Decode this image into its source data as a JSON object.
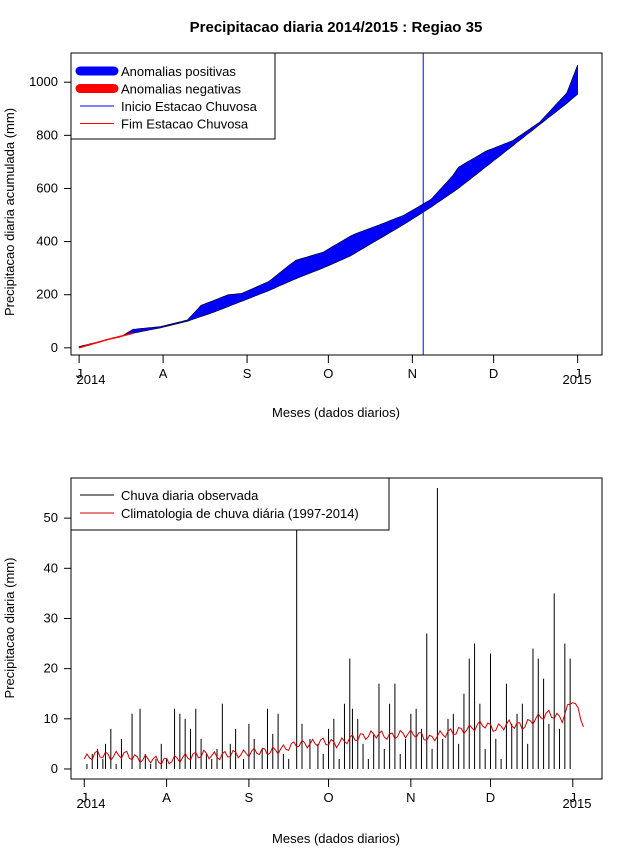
{
  "figure_title": "Precipitacao diaria 2014/2015 : Regiao 35",
  "colors": {
    "positive": "#0000ff",
    "negative": "#ff0000",
    "onset": "#0000ff",
    "end": "#ff0000",
    "bar": "#000000",
    "clim": "#cc0000"
  },
  "chart_data": [
    {
      "id": "accumulated",
      "type": "area",
      "ylabel": "Precipitacao diaria acumulada (mm)",
      "xlabel": "Meses (dados diarios)",
      "x_ticks": [
        "J",
        "A",
        "S",
        "O",
        "N",
        "D",
        "J"
      ],
      "x_tick_days": [
        0,
        31,
        62,
        92,
        123,
        153,
        184
      ],
      "year_labels": {
        "start": "2014",
        "end": "2015"
      },
      "y_ticks": [
        0,
        200,
        400,
        600,
        800,
        1000
      ],
      "xlim": [
        -3,
        193
      ],
      "ylim": [
        -27,
        1110
      ],
      "legend": {
        "position": "top-left",
        "entries": [
          {
            "label": "Anomalias positivas",
            "color": "#0000ff",
            "style": "thick"
          },
          {
            "label": "Anomalias negativas",
            "color": "#ff0000",
            "style": "thick"
          },
          {
            "label": "Inicio Estacao Chuvosa",
            "color": "#0000ff",
            "style": "line"
          },
          {
            "label": "Fim Estacao Chuvosa",
            "color": "#ff0000",
            "style": "line"
          }
        ]
      },
      "onset_day": 127,
      "observed_cumulative": {
        "days": [
          0,
          10,
          15,
          20,
          30,
          40,
          45,
          50,
          55,
          60,
          70,
          78,
          80,
          90,
          100,
          102,
          110,
          120,
          130,
          138,
          140,
          150,
          160,
          170,
          180,
          184
        ],
        "values": [
          5,
          30,
          40,
          70,
          80,
          105,
          160,
          180,
          200,
          205,
          250,
          315,
          330,
          360,
          420,
          430,
          460,
          500,
          560,
          650,
          680,
          740,
          780,
          850,
          960,
          1065
        ]
      },
      "climatology_cumulative": {
        "days": [
          0,
          10,
          20,
          30,
          40,
          50,
          60,
          70,
          80,
          90,
          100,
          110,
          120,
          130,
          140,
          150,
          160,
          170,
          180,
          184
        ],
        "values": [
          0,
          30,
          55,
          75,
          100,
          135,
          175,
          215,
          260,
          300,
          345,
          405,
          465,
          530,
          600,
          680,
          760,
          840,
          920,
          955
        ]
      }
    },
    {
      "id": "daily",
      "type": "bar",
      "ylabel": "Precipitacao diaria (mm)",
      "xlabel": "Meses (dados diarios)",
      "x_ticks": [
        "J",
        "A",
        "S",
        "O",
        "N",
        "D",
        "J"
      ],
      "x_tick_days": [
        0,
        31,
        62,
        92,
        123,
        153,
        184
      ],
      "year_labels": {
        "start": "2014",
        "end": "2015"
      },
      "y_ticks": [
        0,
        10,
        20,
        30,
        40,
        50
      ],
      "xlim": [
        -5,
        195
      ],
      "ylim": [
        -2,
        58
      ],
      "legend": {
        "position": "top-left",
        "entries": [
          {
            "label": "Chuva diaria observada",
            "color": "#000000"
          },
          {
            "label": "Climatologia de chuva diária (1997-2014)",
            "color": "#cc0000"
          }
        ]
      },
      "observed_daily": {
        "days": [
          1,
          3,
          5,
          7,
          8,
          10,
          12,
          14,
          18,
          21,
          23,
          25,
          27,
          29,
          31,
          34,
          36,
          38,
          40,
          42,
          44,
          46,
          48,
          50,
          52,
          55,
          57,
          60,
          62,
          64,
          67,
          69,
          71,
          73,
          75,
          77,
          80,
          82,
          85,
          88,
          90,
          92,
          94,
          96,
          98,
          100,
          101,
          103,
          105,
          107,
          109,
          111,
          113,
          115,
          117,
          119,
          121,
          123,
          125,
          127,
          129,
          131,
          133,
          135,
          137,
          139,
          141,
          143,
          145,
          147,
          149,
          151,
          153,
          155,
          157,
          159,
          161,
          163,
          165,
          167,
          169,
          171,
          173,
          175,
          177,
          179,
          181,
          183
        ],
        "values": [
          1,
          3,
          4,
          2,
          5,
          8,
          1,
          6,
          11,
          12,
          3,
          1,
          2,
          5,
          2,
          12,
          11,
          10,
          8,
          12,
          6,
          3,
          2,
          4,
          13,
          5,
          8,
          2,
          9,
          6,
          4,
          12,
          7,
          11,
          3,
          2,
          48,
          9,
          6,
          5,
          3,
          8,
          10,
          2,
          13,
          22,
          12,
          10,
          5,
          2,
          7,
          17,
          4,
          13,
          17,
          3,
          6,
          11,
          12,
          8,
          27,
          4,
          56,
          6,
          10,
          11,
          5,
          15,
          22,
          25,
          13,
          4,
          23,
          6,
          2,
          17,
          9,
          11,
          13,
          5,
          24,
          22,
          18,
          9,
          35,
          8,
          25,
          22
        ]
      },
      "climatology_daily": {
        "days": [
          0,
          5,
          10,
          15,
          20,
          25,
          30,
          35,
          40,
          45,
          50,
          55,
          60,
          65,
          70,
          75,
          80,
          85,
          90,
          95,
          100,
          105,
          110,
          115,
          120,
          125,
          130,
          135,
          140,
          145,
          150,
          155,
          160,
          165,
          170,
          175,
          180,
          184,
          188
        ],
        "values": [
          2,
          3,
          2.5,
          3,
          2,
          2,
          1.5,
          2,
          2.5,
          3,
          2.5,
          3,
          3,
          3.5,
          3.5,
          4,
          5,
          5,
          5.5,
          5,
          6,
          6.5,
          7,
          6.5,
          7,
          7,
          6,
          7,
          7.5,
          8,
          9,
          8,
          9,
          8.5,
          10,
          11,
          10,
          14,
          9
        ]
      }
    }
  ]
}
